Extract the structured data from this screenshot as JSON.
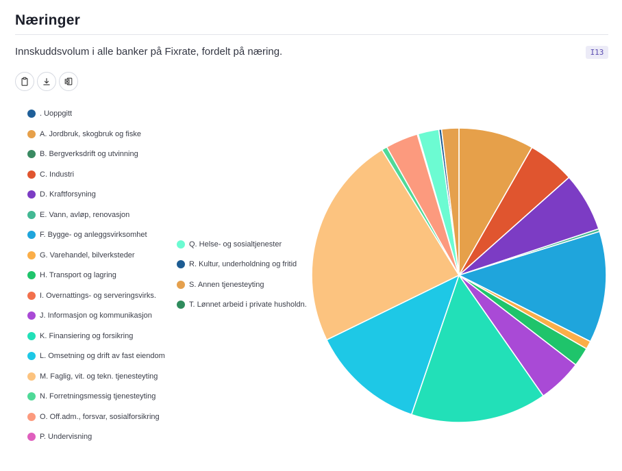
{
  "header": {
    "title": "Næringer",
    "subtitle": "Innskuddsvolum i alle banker på Fixrate, fordelt på næring.",
    "badge": "I13"
  },
  "toolbar": {
    "buttons": [
      {
        "name": "copy-button",
        "icon": "clipboard-icon"
      },
      {
        "name": "download-button",
        "icon": "download-icon"
      },
      {
        "name": "excel-export-button",
        "icon": "excel-icon"
      }
    ]
  },
  "chart_data": {
    "type": "pie",
    "title": "",
    "start_angle_deg": 0,
    "direction": "clockwise",
    "slices": [
      {
        "label": ". Uoppgitt",
        "value": 0.0,
        "color": "#1f5f99"
      },
      {
        "label": "A. Jordbruk, skogbruk og fiske",
        "value": 8.3,
        "color": "#e6a04a"
      },
      {
        "label": "B. Bergverksdrift og utvinning",
        "value": 0.0,
        "color": "#3a8a62"
      },
      {
        "label": "C. Industri",
        "value": 5.2,
        "color": "#e0552f"
      },
      {
        "label": "D. Kraftforsyning",
        "value": 6.5,
        "color": "#7c3cc4"
      },
      {
        "label": "E. Vann, avløp, renovasjon",
        "value": 0.3,
        "color": "#43b893"
      },
      {
        "label": "F. Bygge- og anleggsvirksomhet",
        "value": 12.3,
        "color": "#1fa5dc"
      },
      {
        "label": "G. Varehandel, bilverksteder",
        "value": 0.9,
        "color": "#fbae48"
      },
      {
        "label": "H. Transport og lagring",
        "value": 2.1,
        "color": "#1fc46b"
      },
      {
        "label": "I. Overnattings- og serveringsvirks.",
        "value": 0.0,
        "color": "#f2704c"
      },
      {
        "label": "J. Informasjon og kommunikasjon",
        "value": 4.9,
        "color": "#a94ad6"
      },
      {
        "label": "K. Finansiering og forsikring",
        "value": 15.0,
        "color": "#22e0b8"
      },
      {
        "label": "L. Omsetning og drift av fast eiendom",
        "value": 12.6,
        "color": "#1ec8e6"
      },
      {
        "label": "M. Faglig, vit. og tekn. tjenesteyting",
        "value": 23.6,
        "color": "#fcc37f"
      },
      {
        "label": "N. Forretningsmessig tjenesteyting",
        "value": 0.6,
        "color": "#4fd997"
      },
      {
        "label": "O. Off.adm., forsvar, sosialforsikring",
        "value": 3.6,
        "color": "#fc9a7e"
      },
      {
        "label": "P. Undervisning",
        "value": 0.1,
        "color": "#df5fbd"
      },
      {
        "label": "Q. Helse- og sosialtjenester",
        "value": 2.3,
        "color": "#6cfbd2"
      },
      {
        "label": "R. Kultur, underholdning og fritid",
        "value": 0.3,
        "color": "#1d5c93"
      },
      {
        "label": "S. Annen tjenesteyting",
        "value": 1.9,
        "color": "#e5a04d"
      },
      {
        "label": "T. Lønnet arbeid i private husholdn.",
        "value": 0.0,
        "color": "#2f8c5d"
      }
    ]
  }
}
